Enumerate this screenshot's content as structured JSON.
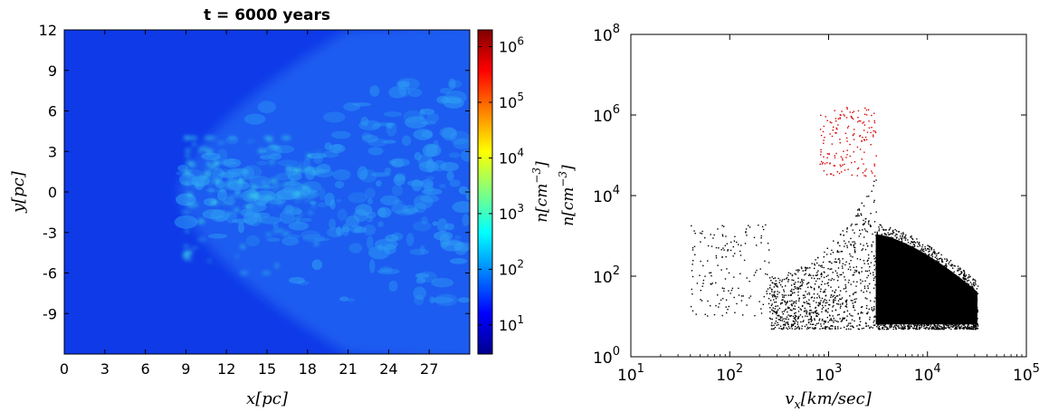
{
  "chart_data": [
    {
      "type": "heatmap",
      "title": "t = 6000 years",
      "xlabel": "x[pc]",
      "ylabel": "y[pc]",
      "xlim": [
        0,
        30
      ],
      "ylim": [
        -12,
        12
      ],
      "xticks": [
        "0",
        "3",
        "6",
        "9",
        "12",
        "15",
        "18",
        "21",
        "24",
        "27"
      ],
      "yticks": [
        "12",
        "9",
        "6",
        "3",
        "0",
        "-3",
        "-6",
        "-9"
      ],
      "colorbar": {
        "label": "n[cm^-3]",
        "scale": "log",
        "range": [
          3,
          2000000
        ],
        "ticks": [
          {
            "value": 10,
            "label": "10",
            "exp": "1"
          },
          {
            "value": 100,
            "label": "10",
            "exp": "2"
          },
          {
            "value": 1000,
            "label": "10",
            "exp": "3"
          },
          {
            "value": 10000,
            "label": "10",
            "exp": "4"
          },
          {
            "value": 100000,
            "label": "10",
            "exp": "5"
          },
          {
            "value": 1000000,
            "label": "10",
            "exp": "6"
          }
        ],
        "colormap": [
          "#00008f",
          "#0000ff",
          "#0080ff",
          "#00ffff",
          "#80ff80",
          "#ffff00",
          "#ff8000",
          "#ff0000",
          "#800000"
        ]
      },
      "features": {
        "background_color": "#0f3ae8",
        "shell_color": "#1f5cf0",
        "filament_color": "#2e9df5",
        "dense_color": "#3ce0e6",
        "shell_nose_x": 8.5,
        "shell_top_x": 21,
        "filament_extent_x": [
          8.5,
          30
        ],
        "filament_extent_y": [
          -8,
          8
        ]
      }
    },
    {
      "type": "scatter",
      "xlabel": "v_x[km/sec]",
      "ylabel": "n[cm^-3]",
      "xscale": "log",
      "yscale": "log",
      "xlim": [
        10,
        100000
      ],
      "ylim": [
        1,
        100000000
      ],
      "xticks": [
        {
          "value": 10,
          "label": "10",
          "exp": "1"
        },
        {
          "value": 100,
          "label": "10",
          "exp": "2"
        },
        {
          "value": 1000,
          "label": "10",
          "exp": "3"
        },
        {
          "value": 10000,
          "label": "10",
          "exp": "4"
        },
        {
          "value": 100000,
          "label": "10",
          "exp": "5"
        }
      ],
      "yticks": [
        {
          "value": 1,
          "label": "10",
          "exp": "0"
        },
        {
          "value": 100,
          "label": "10",
          "exp": "2"
        },
        {
          "value": 10000,
          "label": "10",
          "exp": "4"
        },
        {
          "value": 1000000,
          "label": "10",
          "exp": "6"
        },
        {
          "value": 100000000,
          "label": "10",
          "exp": "8"
        }
      ],
      "series": [
        {
          "color": "#000000",
          "regions": [
            {
              "note": "bulk",
              "x_range": [
                3000,
                32000
              ],
              "y_range": [
                5,
                2000
              ],
              "density": "high"
            },
            {
              "note": "tail",
              "x_range": [
                250,
                3000
              ],
              "y_range": [
                5,
                30000
              ],
              "density": "medium"
            },
            {
              "note": "low-v",
              "x_range": [
                40,
                250
              ],
              "y_range": [
                10,
                2000
              ],
              "density": "low"
            }
          ]
        },
        {
          "color": "#d60000",
          "regions": [
            {
              "note": "dense",
              "x_range": [
                800,
                3000
              ],
              "y_range": [
                30000,
                1600000
              ],
              "density": "low"
            }
          ]
        }
      ]
    }
  ]
}
